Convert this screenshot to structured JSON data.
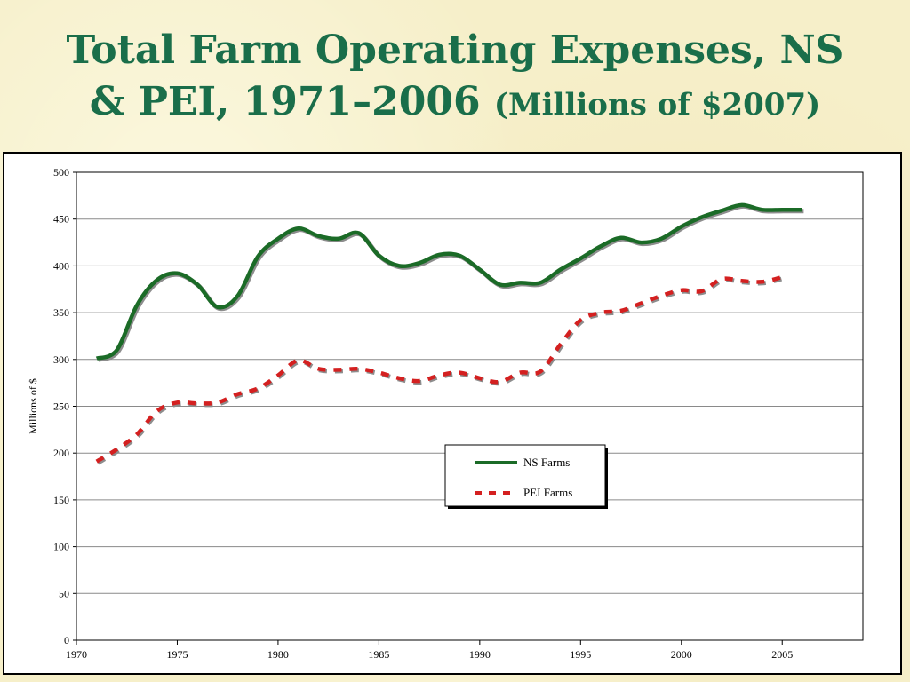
{
  "title": {
    "line1": "Total Farm Operating Expenses, NS",
    "line2": "& PEI, 1971–2006",
    "subtitle": "(Millions of $2007)"
  },
  "chart_data": {
    "type": "line",
    "title": "",
    "xlabel": "",
    "ylabel": "Millions of $",
    "xlim": [
      1970,
      2009
    ],
    "ylim": [
      0,
      500
    ],
    "x_ticks": [
      "1970",
      "1975",
      "1980",
      "1985",
      "1990",
      "1995",
      "2000",
      "2005"
    ],
    "y_ticks": [
      "0",
      "50",
      "100",
      "150",
      "200",
      "250",
      "300",
      "350",
      "400",
      "450",
      "500"
    ],
    "grid": "horizontal",
    "legend_position": "center-right",
    "x": [
      1971,
      1972,
      1973,
      1974,
      1975,
      1976,
      1977,
      1978,
      1979,
      1980,
      1981,
      1982,
      1983,
      1984,
      1985,
      1986,
      1987,
      1988,
      1989,
      1990,
      1991,
      1992,
      1993,
      1994,
      1995,
      1996,
      1997,
      1998,
      1999,
      2000,
      2001,
      2002,
      2003,
      2004,
      2005,
      2006
    ],
    "series": [
      {
        "name": "NS Farms",
        "color": "#1b6b27",
        "style": "solid",
        "values": [
          301,
          310,
          358,
          385,
          392,
          380,
          356,
          368,
          410,
          429,
          440,
          432,
          429,
          435,
          411,
          400,
          403,
          412,
          411,
          396,
          380,
          382,
          382,
          396,
          408,
          421,
          430,
          425,
          429,
          442,
          452,
          459,
          465,
          460,
          460,
          460
        ]
      },
      {
        "name": "PEI Farms",
        "color": "#d42020",
        "style": "dashed",
        "values": [
          191,
          204,
          220,
          245,
          254,
          253,
          254,
          263,
          269,
          283,
          299,
          290,
          289,
          290,
          286,
          280,
          277,
          283,
          286,
          280,
          276,
          286,
          287,
          316,
          342,
          350,
          352,
          360,
          368,
          374,
          373,
          386,
          384,
          383,
          388,
          null
        ]
      }
    ]
  }
}
